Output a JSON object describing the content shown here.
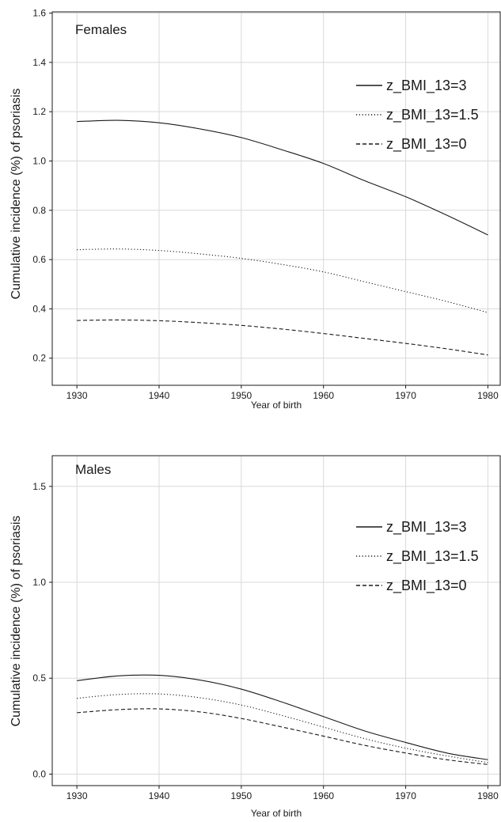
{
  "chart_data": [
    {
      "type": "line",
      "panel_label": "Females",
      "xlabel": "Year of birth",
      "ylabel": "Cumulative incidence (%) of psoriasis",
      "xlim": [
        1927,
        1981.5
      ],
      "ylim": [
        0.09,
        1.605
      ],
      "x_ticks": [
        1930,
        1940,
        1950,
        1960,
        1970,
        1980
      ],
      "y_ticks": [
        0.2,
        0.4,
        0.6,
        0.8,
        1.0,
        1.2,
        1.4,
        1.6
      ],
      "y_tick_labels": [
        "0.2",
        "0.4",
        "0.6",
        "0.8",
        "1.0",
        "1.2",
        "1.4",
        "1.6"
      ],
      "grid": true,
      "legend_position": "top-right",
      "x": [
        1930,
        1935,
        1940,
        1945,
        1950,
        1955,
        1960,
        1965,
        1970,
        1975,
        1980
      ],
      "series": [
        {
          "name": "z_BMI_13=3",
          "dash": "solid",
          "values": [
            1.16,
            1.165,
            1.155,
            1.13,
            1.095,
            1.045,
            0.99,
            0.92,
            0.855,
            0.78,
            0.7
          ]
        },
        {
          "name": "z_BMI_13=1.5",
          "dash": "dotted",
          "values": [
            0.64,
            0.643,
            0.637,
            0.623,
            0.605,
            0.58,
            0.55,
            0.51,
            0.47,
            0.43,
            0.385
          ]
        },
        {
          "name": "z_BMI_13=0",
          "dash": "dashed",
          "values": [
            0.353,
            0.355,
            0.352,
            0.344,
            0.333,
            0.318,
            0.3,
            0.28,
            0.26,
            0.238,
            0.213
          ]
        }
      ]
    },
    {
      "type": "line",
      "panel_label": "Males",
      "xlabel": "Year of birth",
      "ylabel": "Cumulative incidence (%) of psoriasis",
      "xlim": [
        1927,
        1981.5
      ],
      "ylim": [
        -0.06,
        1.66
      ],
      "x_ticks": [
        1930,
        1940,
        1950,
        1960,
        1970,
        1980
      ],
      "y_ticks": [
        0.0,
        0.5,
        1.0,
        1.5
      ],
      "y_tick_labels": [
        "0.0",
        "0.5",
        "1.0",
        "1.5"
      ],
      "grid": true,
      "legend_position": "top-right",
      "x": [
        1930,
        1935,
        1940,
        1945,
        1950,
        1955,
        1960,
        1965,
        1970,
        1975,
        1980
      ],
      "series": [
        {
          "name": "z_BMI_13=3",
          "dash": "solid",
          "values": [
            0.487,
            0.512,
            0.515,
            0.49,
            0.443,
            0.375,
            0.3,
            0.225,
            0.165,
            0.11,
            0.075
          ]
        },
        {
          "name": "z_BMI_13=1.5",
          "dash": "dotted",
          "values": [
            0.395,
            0.415,
            0.418,
            0.398,
            0.36,
            0.305,
            0.245,
            0.185,
            0.135,
            0.095,
            0.06
          ]
        },
        {
          "name": "z_BMI_13=0",
          "dash": "dashed",
          "values": [
            0.32,
            0.336,
            0.34,
            0.324,
            0.29,
            0.245,
            0.198,
            0.15,
            0.11,
            0.075,
            0.05
          ]
        }
      ]
    }
  ]
}
